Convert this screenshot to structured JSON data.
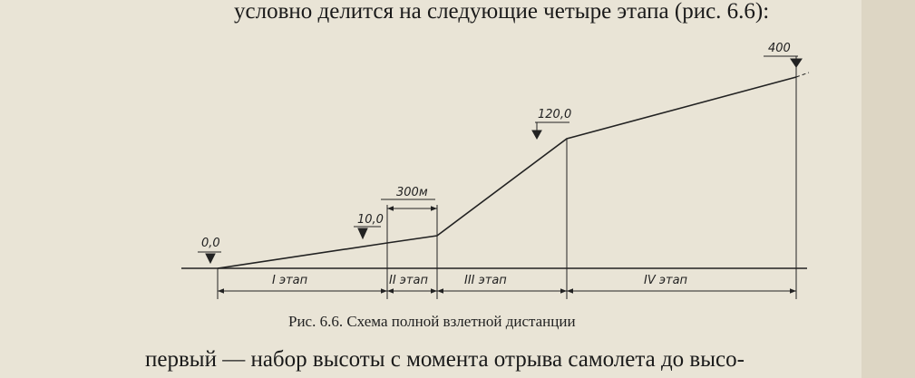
{
  "paragraph_top": "условно делится на следующие четыре этапа (рис. 6.6):",
  "figure": {
    "heights": [
      "0,0",
      "10,0",
      "120,0",
      "400"
    ],
    "distance_label": "300м",
    "stages": [
      "I этап",
      "II этап",
      "III этап",
      "IV этап"
    ],
    "caption": "Рис. 6.6. Схема полной взлетной дистанции"
  },
  "paragraph_bottom": "первый — набор высоты с момента отрыва самолета до высо-"
}
